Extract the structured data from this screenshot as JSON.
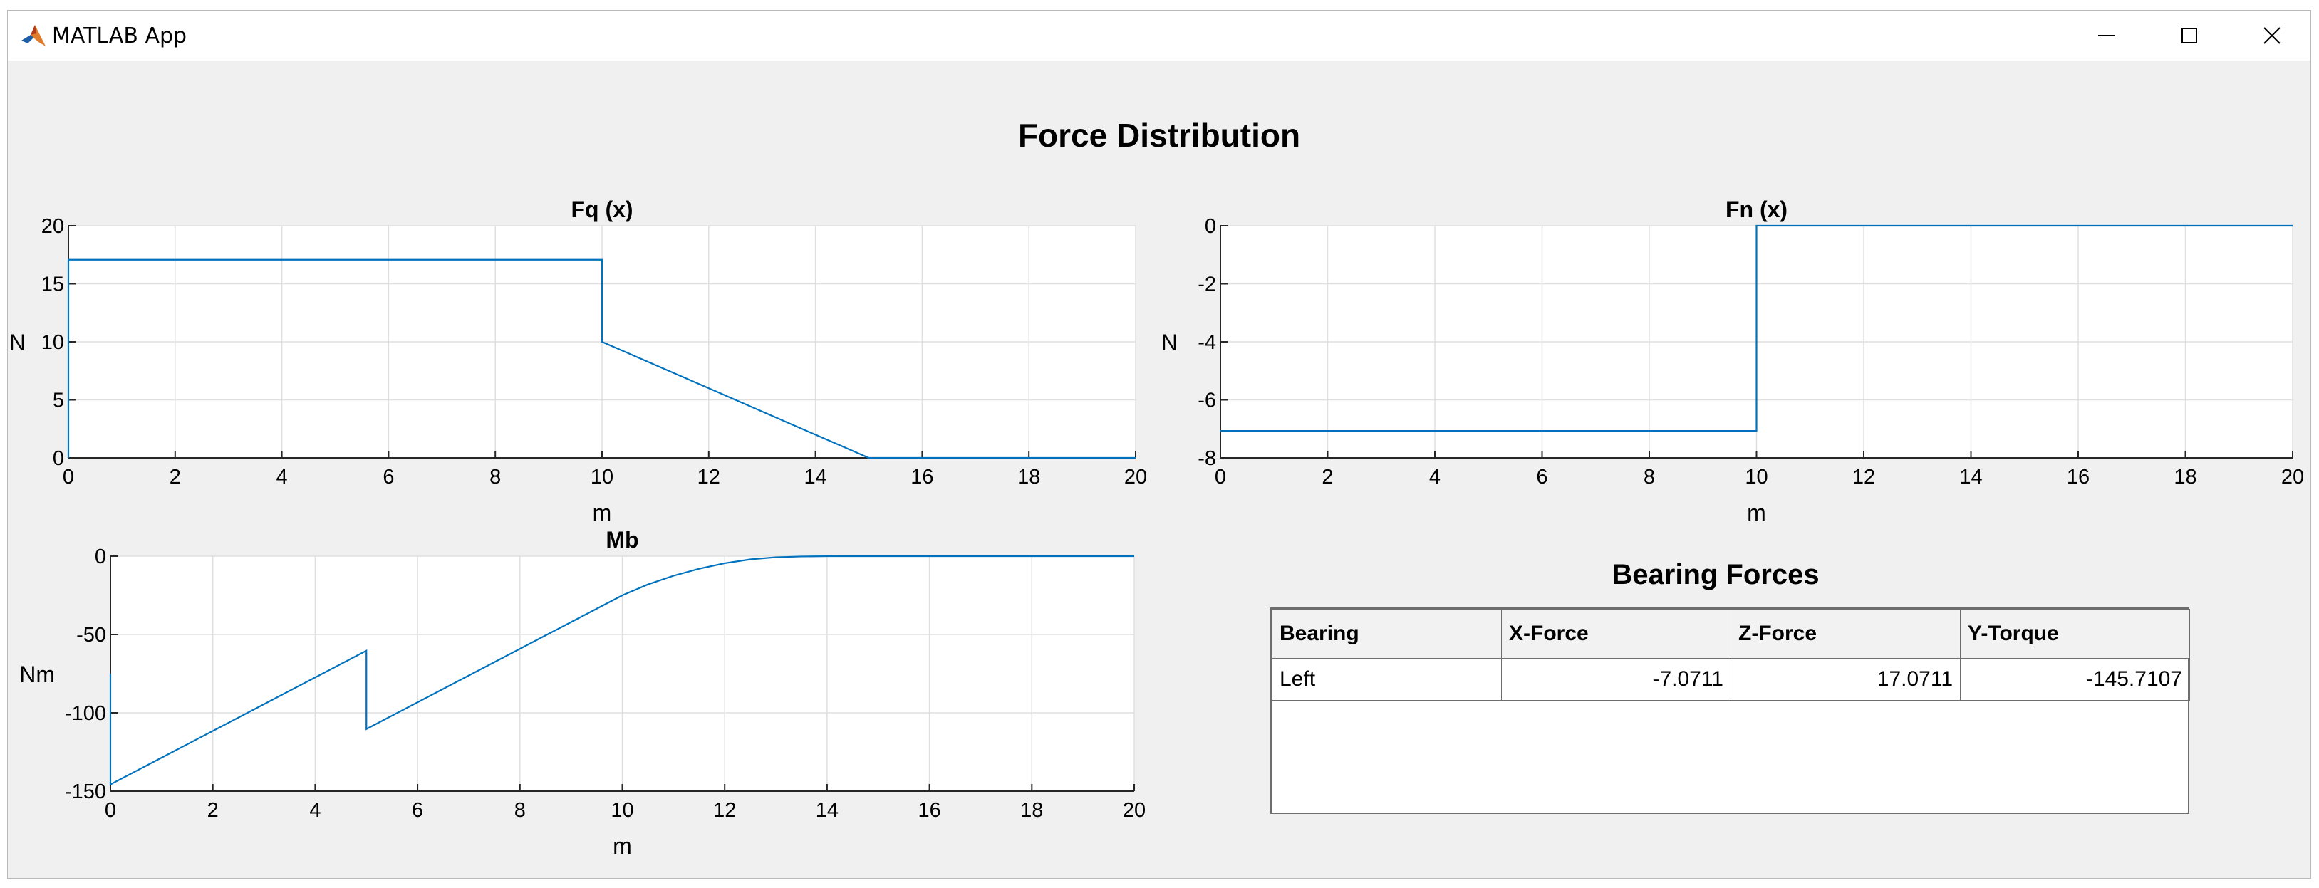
{
  "window": {
    "title": "MATLAB App",
    "icon": "matlab-logo-icon",
    "controls": [
      "minimize-icon",
      "maximize-icon",
      "close-icon"
    ]
  },
  "app": {
    "title": "Force Distribution",
    "bearing_title": "Bearing Forces"
  },
  "chart_data": [
    {
      "type": "line",
      "title": "Fq (x)",
      "xlabel": "m",
      "ylabel": "N",
      "xlim": [
        0,
        20
      ],
      "ylim": [
        0,
        20
      ],
      "xticks": [
        0,
        2,
        4,
        6,
        8,
        10,
        12,
        14,
        16,
        18,
        20
      ],
      "yticks": [
        0,
        5,
        10,
        15,
        20
      ],
      "grid": true,
      "color": "#0072bd",
      "x": [
        0,
        0,
        10,
        10,
        15,
        20
      ],
      "y": [
        0,
        17.0711,
        17.0711,
        10,
        0,
        0
      ]
    },
    {
      "type": "line",
      "title": "Fn (x)",
      "xlabel": "m",
      "ylabel": "N",
      "xlim": [
        0,
        20
      ],
      "ylim": [
        -8,
        0
      ],
      "xticks": [
        0,
        2,
        4,
        6,
        8,
        10,
        12,
        14,
        16,
        18,
        20
      ],
      "yticks": [
        -8,
        -6,
        -4,
        -2,
        0
      ],
      "grid": true,
      "color": "#0072bd",
      "x": [
        0,
        10,
        10,
        20
      ],
      "y": [
        -7.0711,
        -7.0711,
        0,
        0
      ]
    },
    {
      "type": "line",
      "title": "Mb",
      "xlabel": "m",
      "ylabel": "Nm",
      "xlim": [
        0,
        20
      ],
      "ylim": [
        -150,
        0
      ],
      "xticks": [
        0,
        2,
        4,
        6,
        8,
        10,
        12,
        14,
        16,
        18,
        20
      ],
      "yticks": [
        -150,
        -100,
        -50,
        0
      ],
      "grid": true,
      "color": "#0072bd",
      "x": [
        0,
        0,
        5,
        5,
        10,
        10.5,
        11,
        11.5,
        12,
        12.5,
        13,
        13.5,
        14,
        14.5,
        15,
        20
      ],
      "y": [
        -75,
        -145.7107,
        -60.35,
        -110.35,
        -25,
        -18.05,
        -12.5,
        -8.05,
        -4.5,
        -2.05,
        -0.7,
        -0.2,
        -0.02,
        0,
        0,
        0
      ]
    }
  ],
  "bearing_table": {
    "columns": [
      "Bearing",
      "X-Force",
      "Z-Force",
      "Y-Torque"
    ],
    "rows": [
      [
        "Left",
        "-7.0711",
        "17.0711",
        "-145.7107"
      ]
    ]
  }
}
